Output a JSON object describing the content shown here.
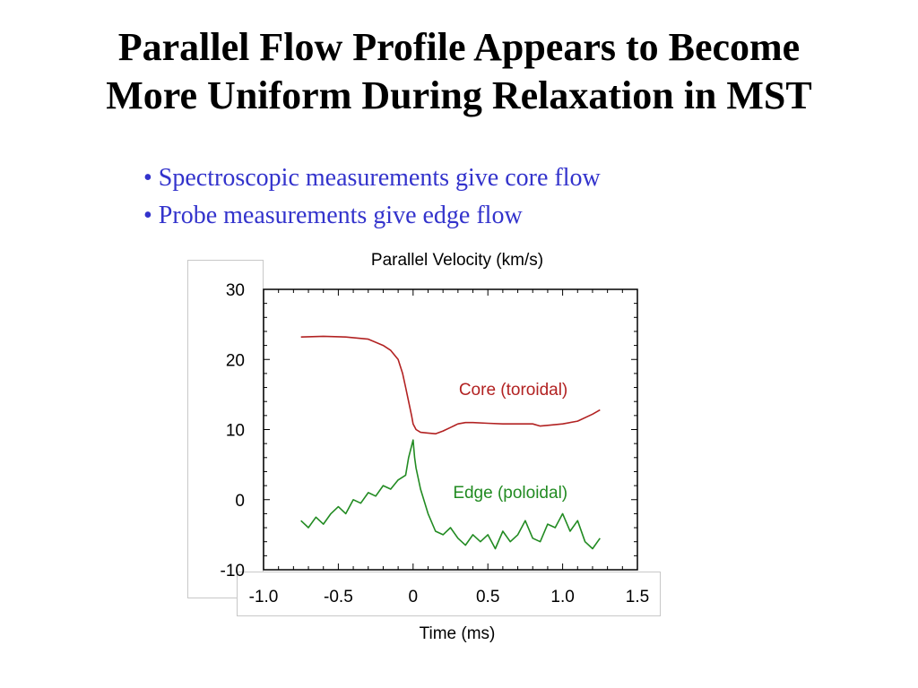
{
  "slide": {
    "title_line1": "Parallel Flow Profile Appears to Become",
    "title_line2": "More Uniform During Relaxation in MST",
    "bullets": [
      "• Spectroscopic measurements give core flow",
      "• Probe measurements give edge flow"
    ]
  },
  "chart_data": {
    "type": "line",
    "title": "Parallel Velocity (km/s)",
    "xlabel": "Time (ms)",
    "ylabel": "",
    "xlim": [
      -1.0,
      1.5
    ],
    "ylim": [
      -10,
      30
    ],
    "x_ticks": [
      "-1.0",
      "-0.5",
      "0",
      "0.5",
      "1.0",
      "1.5"
    ],
    "y_ticks": [
      "30",
      "20",
      "10",
      "0",
      "-10"
    ],
    "grid": false,
    "series": [
      {
        "name": "Core (toroidal)",
        "color": "#b22222",
        "x": [
          -0.75,
          -0.6,
          -0.45,
          -0.3,
          -0.2,
          -0.15,
          -0.1,
          -0.07,
          -0.05,
          -0.03,
          -0.01,
          0.0,
          0.02,
          0.05,
          0.1,
          0.15,
          0.2,
          0.25,
          0.3,
          0.35,
          0.4,
          0.5,
          0.6,
          0.7,
          0.8,
          0.85,
          0.9,
          1.0,
          1.1,
          1.2,
          1.25
        ],
        "values": [
          23.2,
          23.3,
          23.2,
          22.9,
          22.0,
          21.3,
          20.0,
          18.0,
          16.0,
          14.0,
          12.0,
          10.8,
          10.0,
          9.6,
          9.5,
          9.4,
          9.8,
          10.3,
          10.8,
          11.0,
          11.0,
          10.9,
          10.8,
          10.8,
          10.8,
          10.5,
          10.6,
          10.8,
          11.2,
          12.2,
          12.8
        ]
      },
      {
        "name": "Edge (poloidal)",
        "color": "#228b22",
        "x": [
          -0.75,
          -0.7,
          -0.65,
          -0.6,
          -0.55,
          -0.5,
          -0.45,
          -0.4,
          -0.35,
          -0.3,
          -0.25,
          -0.2,
          -0.15,
          -0.1,
          -0.05,
          -0.03,
          0.0,
          0.01,
          0.02,
          0.05,
          0.1,
          0.15,
          0.2,
          0.25,
          0.3,
          0.35,
          0.4,
          0.45,
          0.5,
          0.55,
          0.6,
          0.65,
          0.7,
          0.75,
          0.8,
          0.85,
          0.9,
          0.95,
          1.0,
          1.05,
          1.1,
          1.15,
          1.2,
          1.25
        ],
        "values": [
          -3.0,
          -4.0,
          -2.5,
          -3.5,
          -2.0,
          -1.0,
          -2.0,
          0.0,
          -0.5,
          1.0,
          0.5,
          2.0,
          1.5,
          2.8,
          3.5,
          6.0,
          8.5,
          6.0,
          4.5,
          1.5,
          -2.0,
          -4.5,
          -5.0,
          -4.0,
          -5.5,
          -6.5,
          -5.0,
          -6.0,
          -5.0,
          -7.0,
          -4.5,
          -6.0,
          -5.0,
          -3.0,
          -5.5,
          -6.0,
          -3.5,
          -4.0,
          -2.0,
          -4.5,
          -3.0,
          -6.0,
          -7.0,
          -5.5
        ]
      }
    ],
    "annotations": [
      {
        "text": "Core (toroidal)",
        "color": "#b22222"
      },
      {
        "text": "Edge (poloidal)",
        "color": "#228b22"
      }
    ]
  }
}
